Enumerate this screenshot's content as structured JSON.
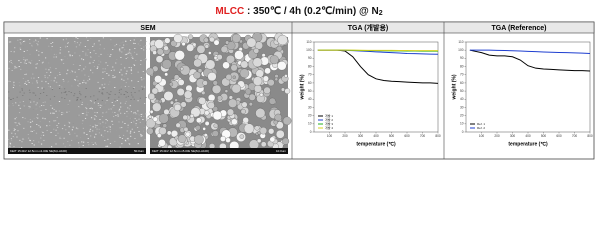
{
  "title": {
    "label": "MLCC",
    "text": " : 350℃ / 4h (0.2℃/min) @ N",
    "sub": "2"
  },
  "headers": [
    "SEM",
    "TGA (개발용)",
    "TGA (Reference)"
  ],
  "sem": [
    {
      "caption": "KEIT 15.0kV 12.5mm x1.00k SE(M,LA100)",
      "scale": "50.0um"
    },
    {
      "caption": "KEIT 15.0kV 12.5mm x5.00k SE(M,LA100)",
      "scale": "10.0um"
    }
  ],
  "chart_data": [
    {
      "type": "line",
      "xlabel": "temperature (℃)",
      "ylabel": "weight (%)",
      "x": [
        25,
        100,
        150,
        200,
        250,
        300,
        350,
        400,
        450,
        500,
        550,
        600,
        650,
        700,
        750,
        800
      ],
      "series": [
        {
          "name": "개발 1",
          "color": "#000000",
          "values": [
            100,
            100,
            100,
            99,
            92,
            80,
            70,
            65,
            63,
            62,
            61.5,
            61,
            60.5,
            60,
            60,
            59.5
          ]
        },
        {
          "name": "개발 2",
          "color": "#1f3fd0",
          "values": [
            100,
            100,
            100,
            99.8,
            99.5,
            99,
            98.5,
            98,
            97.5,
            97,
            96.5,
            96,
            95.8,
            95.5,
            95.2,
            95
          ]
        },
        {
          "name": "개발 3",
          "color": "#22b022",
          "values": [
            100,
            100,
            100,
            100,
            99.8,
            99.6,
            99.5,
            99.4,
            99.3,
            99.2,
            99.1,
            99,
            99,
            98.9,
            98.9,
            98.8
          ]
        },
        {
          "name": "개발 4",
          "color": "#d8d020",
          "values": [
            100,
            100,
            100,
            100,
            100,
            99.9,
            99.8,
            99.8,
            99.7,
            99.7,
            99.6,
            99.6,
            99.5,
            99.5,
            99.5,
            99.4
          ]
        }
      ],
      "xlim": [
        0,
        800
      ],
      "xticks": [
        100,
        200,
        300,
        400,
        500,
        600,
        700,
        800
      ],
      "ylim": [
        0,
        110
      ],
      "yticks": [
        0,
        10,
        20,
        30,
        40,
        50,
        60,
        70,
        80,
        90,
        100,
        110
      ],
      "legend": "lower left"
    },
    {
      "type": "line",
      "xlabel": "temperature (℃)",
      "ylabel": "weight (%)",
      "x": [
        25,
        100,
        150,
        200,
        250,
        300,
        350,
        400,
        450,
        500,
        550,
        600,
        650,
        700,
        750,
        800
      ],
      "series": [
        {
          "name": "Ref. 1",
          "color": "#000000",
          "values": [
            100,
            97,
            94,
            93,
            93,
            92,
            88,
            81,
            78,
            77,
            76.5,
            76,
            75.5,
            75,
            75,
            74.5
          ]
        },
        {
          "name": "Ref. 2",
          "color": "#1f3fd0",
          "values": [
            100,
            100,
            100,
            99.8,
            99.6,
            99.3,
            99,
            98.6,
            98.2,
            97.8,
            97.5,
            97.2,
            97,
            96.7,
            96.4,
            96
          ]
        }
      ],
      "xlim": [
        0,
        800
      ],
      "xticks": [
        100,
        200,
        300,
        400,
        500,
        600,
        700,
        800
      ],
      "ylim": [
        0,
        110
      ],
      "yticks": [
        0,
        10,
        20,
        30,
        40,
        50,
        60,
        70,
        80,
        90,
        100,
        110
      ],
      "legend": "lower left"
    }
  ]
}
